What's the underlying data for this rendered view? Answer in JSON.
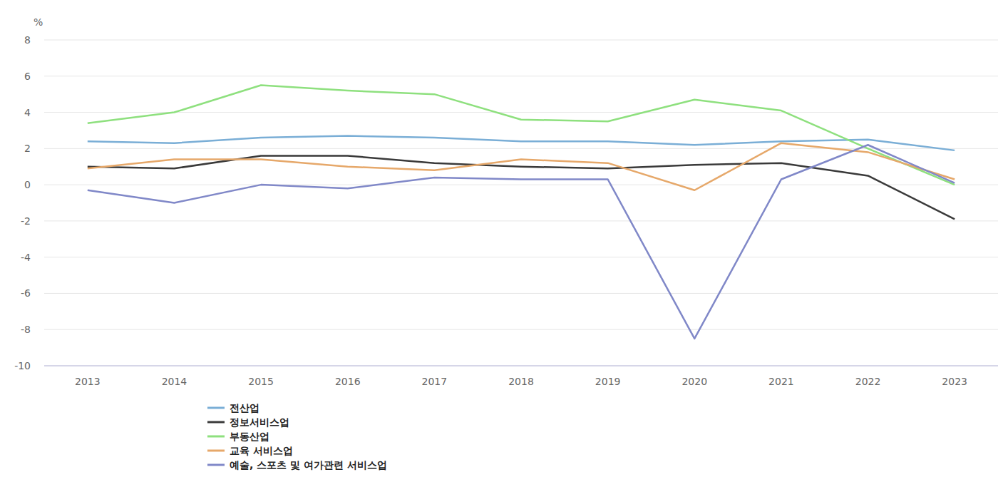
{
  "chart_data": {
    "type": "line",
    "y_label": "%",
    "categories": [
      "2013",
      "2014",
      "2015",
      "2016",
      "2017",
      "2018",
      "2019",
      "2020",
      "2021",
      "2022",
      "2023"
    ],
    "series": [
      {
        "name": "전산업",
        "color": "#7aaed6",
        "values": [
          2.4,
          2.3,
          2.6,
          2.7,
          2.6,
          2.4,
          2.4,
          2.2,
          2.4,
          2.5,
          1.9
        ]
      },
      {
        "name": "정보서비스업",
        "color": "#3a3a3a",
        "values": [
          1.0,
          0.9,
          1.6,
          1.6,
          1.2,
          1.0,
          0.9,
          1.1,
          1.2,
          0.5,
          -1.9
        ]
      },
      {
        "name": "부동산업",
        "color": "#8ee07e",
        "values": [
          3.4,
          4.0,
          5.5,
          5.2,
          5.0,
          3.6,
          3.5,
          4.7,
          4.1,
          2.0,
          0.0
        ]
      },
      {
        "name": "교육 서비스업",
        "color": "#e6a86a",
        "values": [
          0.9,
          1.4,
          1.4,
          1.0,
          0.8,
          1.4,
          1.2,
          -0.3,
          2.3,
          1.8,
          0.3
        ]
      },
      {
        "name": "예술, 스포츠 및 여가관련 서비스업",
        "color": "#8088c8",
        "values": [
          -0.3,
          -1.0,
          0.0,
          -0.2,
          0.4,
          0.3,
          0.3,
          -8.5,
          0.3,
          2.2,
          0.1
        ]
      }
    ],
    "ylim": [
      -10,
      8
    ],
    "yticks": [
      -10,
      -8,
      -6,
      -4,
      -2,
      0,
      2,
      4,
      6,
      8
    ],
    "grid": true,
    "legend": "bottom-left"
  }
}
